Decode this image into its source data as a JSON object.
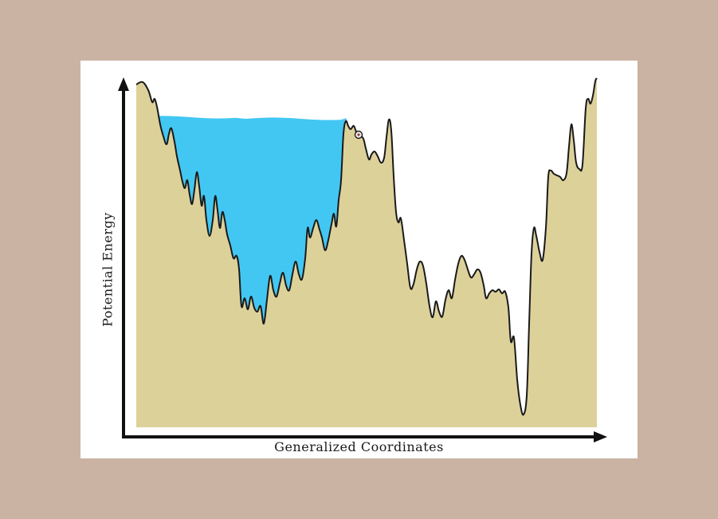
{
  "colors": {
    "background": "#CAB3A3",
    "panel": "#FFFFFF",
    "terrain": "#DDD19A",
    "water": "#42C7F3",
    "outline": "#1A1A1A",
    "axis": "#111111"
  },
  "axes": {
    "x_label": "Generalized Coordinates",
    "y_label": "Potential Energy"
  },
  "icons": {
    "ball": "ball-icon",
    "x_arrow": "arrow-right-icon",
    "y_arrow": "arrow-up-icon"
  }
}
